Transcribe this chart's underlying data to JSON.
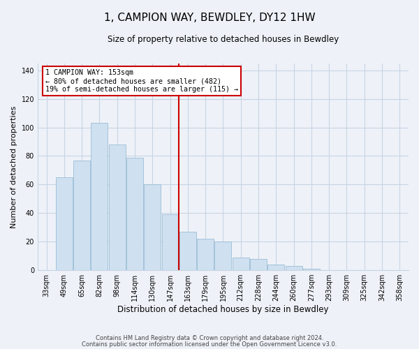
{
  "title": "1, CAMPION WAY, BEWDLEY, DY12 1HW",
  "subtitle": "Size of property relative to detached houses in Bewdley",
  "xlabel": "Distribution of detached houses by size in Bewdley",
  "ylabel": "Number of detached properties",
  "bar_color": "#cfe0f0",
  "bar_edge_color": "#9bbdd6",
  "bins": [
    "33sqm",
    "49sqm",
    "65sqm",
    "82sqm",
    "98sqm",
    "114sqm",
    "130sqm",
    "147sqm",
    "163sqm",
    "179sqm",
    "195sqm",
    "212sqm",
    "228sqm",
    "244sqm",
    "260sqm",
    "277sqm",
    "293sqm",
    "309sqm",
    "325sqm",
    "342sqm",
    "358sqm"
  ],
  "values": [
    0,
    65,
    77,
    103,
    88,
    79,
    60,
    39,
    27,
    22,
    20,
    9,
    8,
    4,
    3,
    1,
    0,
    0,
    0,
    0,
    0
  ],
  "vline_label": "1 CAMPION WAY: 153sqm",
  "annotation_line1": "← 80% of detached houses are smaller (482)",
  "annotation_line2": "19% of semi-detached houses are larger (115) →",
  "ylim": [
    0,
    145
  ],
  "yticks": [
    0,
    20,
    40,
    60,
    80,
    100,
    120,
    140
  ],
  "footer1": "Contains HM Land Registry data © Crown copyright and database right 2024.",
  "footer2": "Contains public sector information licensed under the Open Government Licence v3.0.",
  "background_color": "#eef2f8",
  "grid_color": "#c8d4e4",
  "vline_color": "#cc0000",
  "box_edge_color": "#cc0000"
}
